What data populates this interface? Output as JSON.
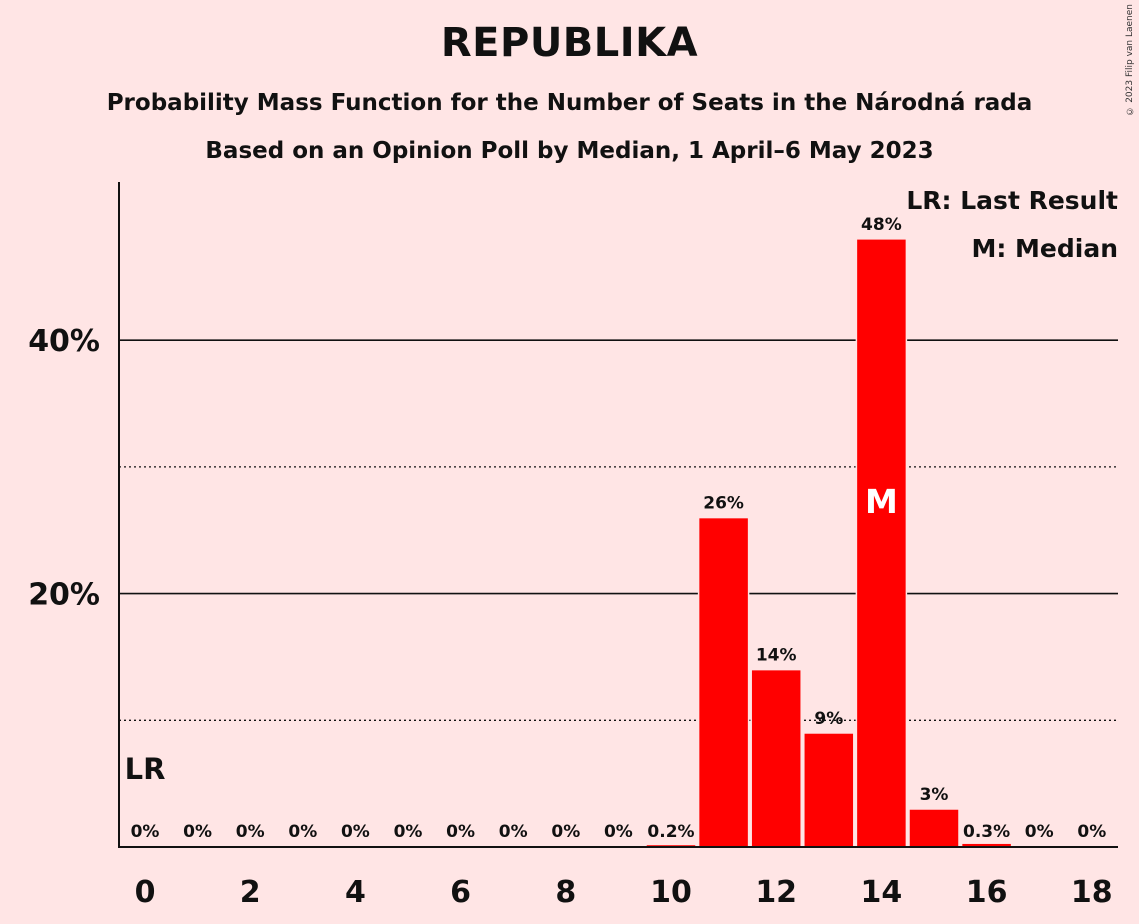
{
  "chart_data": {
    "type": "bar",
    "title": "REPUBLIKA",
    "subtitle": "Probability Mass Function for the Number of Seats in the Národná rada",
    "subtitle2": "Based on an Opinion Poll by Median, 1 April–6 May 2023",
    "copyright": "© 2023 Filip van Laenen",
    "x": [
      0,
      1,
      2,
      3,
      4,
      5,
      6,
      7,
      8,
      9,
      10,
      11,
      12,
      13,
      14,
      15,
      16,
      17,
      18
    ],
    "values": [
      0,
      0,
      0,
      0,
      0,
      0,
      0,
      0,
      0,
      0,
      0.2,
      26,
      14,
      9,
      48,
      3,
      0.3,
      0,
      0
    ],
    "value_labels": [
      "0%",
      "0%",
      "0%",
      "0%",
      "0%",
      "0%",
      "0%",
      "0%",
      "0%",
      "0%",
      "0.2%",
      "26%",
      "14%",
      "9%",
      "48%",
      "3%",
      "0.3%",
      "0%",
      "0%"
    ],
    "x_tick_labels": [
      "0",
      "2",
      "4",
      "6",
      "8",
      "10",
      "12",
      "14",
      "16",
      "18"
    ],
    "y_tick_labels": [
      "20%",
      "40%"
    ],
    "ylim": [
      0,
      52
    ],
    "grid_solid": [
      20,
      40
    ],
    "grid_dotted": [
      10,
      30
    ],
    "last_result_seat": 0,
    "last_result_mark": "LR",
    "median_seat": 14,
    "median_mark": "M",
    "legend": [
      "LR: Last Result",
      "M: Median"
    ],
    "legend_position": "top-right",
    "colors": {
      "bar": "#ff0000",
      "background": "#ffe5e5",
      "axis": "#111111"
    }
  }
}
